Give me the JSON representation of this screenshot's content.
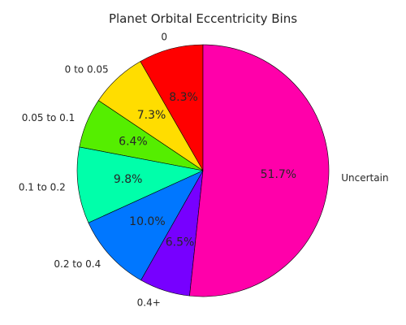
{
  "chart_data": {
    "type": "pie",
    "title": "Planet Orbital Eccentricity Bins",
    "categories": [
      "0",
      "0 to 0.05",
      "0.05 to 0.1",
      "0.1 to 0.2",
      "0.2 to 0.4",
      "0.4+",
      "Uncertain"
    ],
    "values": [
      8.3,
      7.3,
      6.4,
      9.8,
      10.0,
      6.5,
      51.7
    ],
    "value_labels": [
      "8.3%",
      "7.3%",
      "6.4%",
      "9.8%",
      "10.0%",
      "6.5%",
      "51.7%"
    ],
    "colors": [
      "#ff0000",
      "#ffdd00",
      "#55ee00",
      "#00ffaa",
      "#0077ff",
      "#7700ff",
      "#ff00aa"
    ],
    "start_angle_deg": 90,
    "direction": "counterclockwise",
    "edge_color": "#000000"
  }
}
